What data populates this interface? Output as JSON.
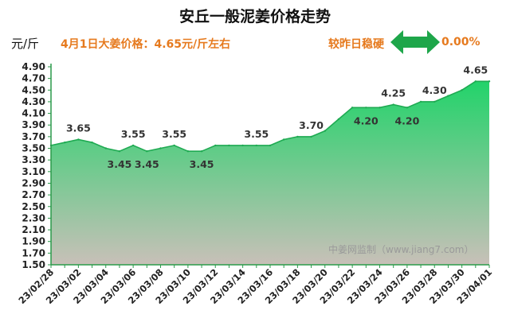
{
  "header": {
    "title": "安丘一般泥姜价格走势",
    "unit": "元/斤",
    "price_note": "4月1日大姜价格：4.65元/斤左右",
    "compare_label": "较昨日稳硬",
    "change_value": "0.00%",
    "arrow_icon": "double-arrow-icon"
  },
  "watermark": "中姜网监制（www.jiang7.com）",
  "colors": {
    "line": "#1faa52",
    "fill_top": "#22d36a",
    "fill_bottom": "#c8c0b8",
    "accent_text": "#e67a1e",
    "arrow": "#1ea64a"
  },
  "chart_data": {
    "type": "area",
    "title": "安丘一般泥姜价格走势",
    "ylabel": "元/斤",
    "xlabel": "",
    "ylim": [
      1.5,
      4.9
    ],
    "yticks": [
      "1.50",
      "1.70",
      "1.90",
      "2.10",
      "2.30",
      "2.50",
      "2.70",
      "2.90",
      "3.10",
      "3.30",
      "3.50",
      "3.70",
      "3.90",
      "4.10",
      "4.30",
      "4.50",
      "4.70",
      "4.90"
    ],
    "grid": false,
    "legend": "none",
    "x": [
      "23/02/28",
      "23/03/01",
      "23/03/02",
      "23/03/03",
      "23/03/04",
      "23/03/05",
      "23/03/06",
      "23/03/07",
      "23/03/08",
      "23/03/09",
      "23/03/10",
      "23/03/11",
      "23/03/12",
      "23/03/13",
      "23/03/14",
      "23/03/15",
      "23/03/16",
      "23/03/17",
      "23/03/18",
      "23/03/19",
      "23/03/20",
      "23/03/21",
      "23/03/22",
      "23/03/23",
      "23/03/24",
      "23/03/25",
      "23/03/26",
      "23/03/27",
      "23/03/28",
      "23/03/29",
      "23/03/30",
      "23/03/31",
      "23/04/01"
    ],
    "xtick_labels": [
      "23/02/28",
      "23/03/02",
      "23/03/04",
      "23/03/06",
      "23/03/08",
      "23/03/10",
      "23/03/12",
      "23/03/14",
      "23/03/16",
      "23/03/18",
      "23/03/20",
      "23/03/22",
      "23/03/24",
      "23/03/26",
      "23/03/28",
      "23/03/30",
      "23/04/01"
    ],
    "series": [
      {
        "values": [
          3.55,
          3.6,
          3.65,
          3.6,
          3.5,
          3.45,
          3.55,
          3.45,
          3.5,
          3.55,
          3.45,
          3.45,
          3.55,
          3.55,
          3.55,
          3.55,
          3.55,
          3.65,
          3.7,
          3.7,
          3.8,
          4.0,
          4.2,
          4.2,
          4.2,
          4.25,
          4.2,
          4.3,
          4.3,
          4.4,
          4.5,
          4.65,
          4.65
        ]
      }
    ],
    "data_labels": [
      {
        "x": "23/03/02",
        "text": "3.65",
        "pos": "above"
      },
      {
        "x": "23/03/05",
        "text": "3.45",
        "pos": "below"
      },
      {
        "x": "23/03/06",
        "text": "3.55",
        "pos": "above"
      },
      {
        "x": "23/03/07",
        "text": "3.45",
        "pos": "below"
      },
      {
        "x": "23/03/09",
        "text": "3.55",
        "pos": "above"
      },
      {
        "x": "23/03/11",
        "text": "3.45",
        "pos": "below"
      },
      {
        "x": "23/03/15",
        "text": "3.55",
        "pos": "above"
      },
      {
        "x": "23/03/19",
        "text": "3.70",
        "pos": "above"
      },
      {
        "x": "23/03/23",
        "text": "4.20",
        "pos": "below"
      },
      {
        "x": "23/03/25",
        "text": "4.25",
        "pos": "above"
      },
      {
        "x": "23/03/26",
        "text": "4.20",
        "pos": "below"
      },
      {
        "x": "23/03/28",
        "text": "4.30",
        "pos": "above"
      },
      {
        "x": "23/03/31",
        "text": "4.65",
        "pos": "above"
      }
    ]
  }
}
